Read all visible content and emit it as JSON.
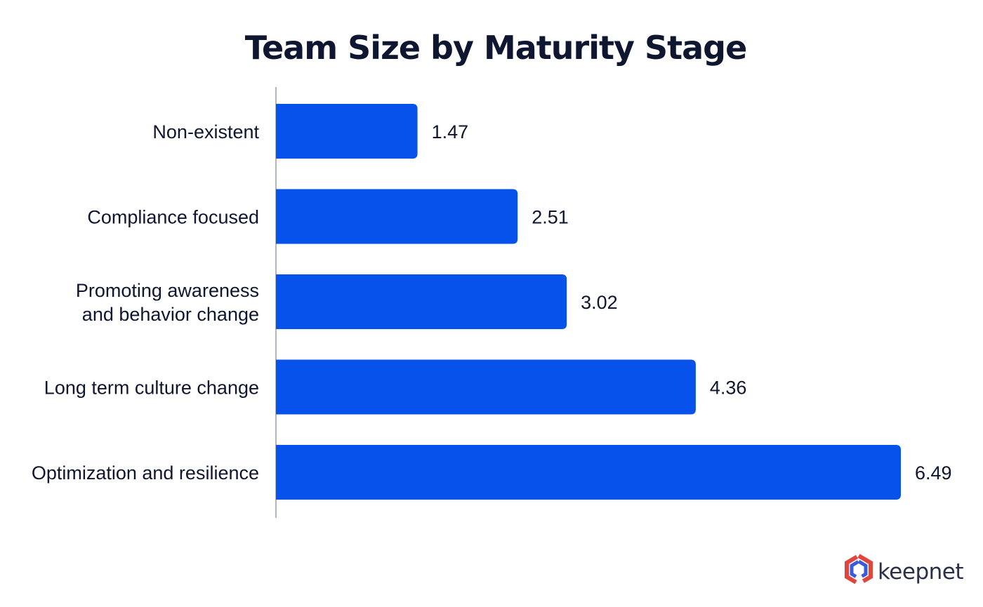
{
  "colors": {
    "bar": "#0652ea",
    "text": "#0f1630",
    "axis": "#9aa0ab",
    "logo_red": "#e2453c",
    "logo_blue": "#3a5bd9"
  },
  "brand": {
    "name": "keepnet",
    "icon": "keepnet-logo-icon"
  },
  "chart_data": {
    "type": "bar",
    "orientation": "horizontal",
    "title": "Team Size by Maturity Stage",
    "categories": [
      [
        "Non-existent"
      ],
      [
        "Compliance focused"
      ],
      [
        "Promoting awareness",
        "and behavior change"
      ],
      [
        "Long term culture change"
      ],
      [
        "Optimization and resilience"
      ]
    ],
    "values": [
      1.47,
      2.51,
      3.02,
      4.36,
      6.49
    ],
    "value_labels": [
      "1.47",
      "2.51",
      "3.02",
      "4.36",
      "6.49"
    ],
    "xlim": [
      0,
      6.49
    ],
    "grid": false,
    "legend": "none"
  }
}
